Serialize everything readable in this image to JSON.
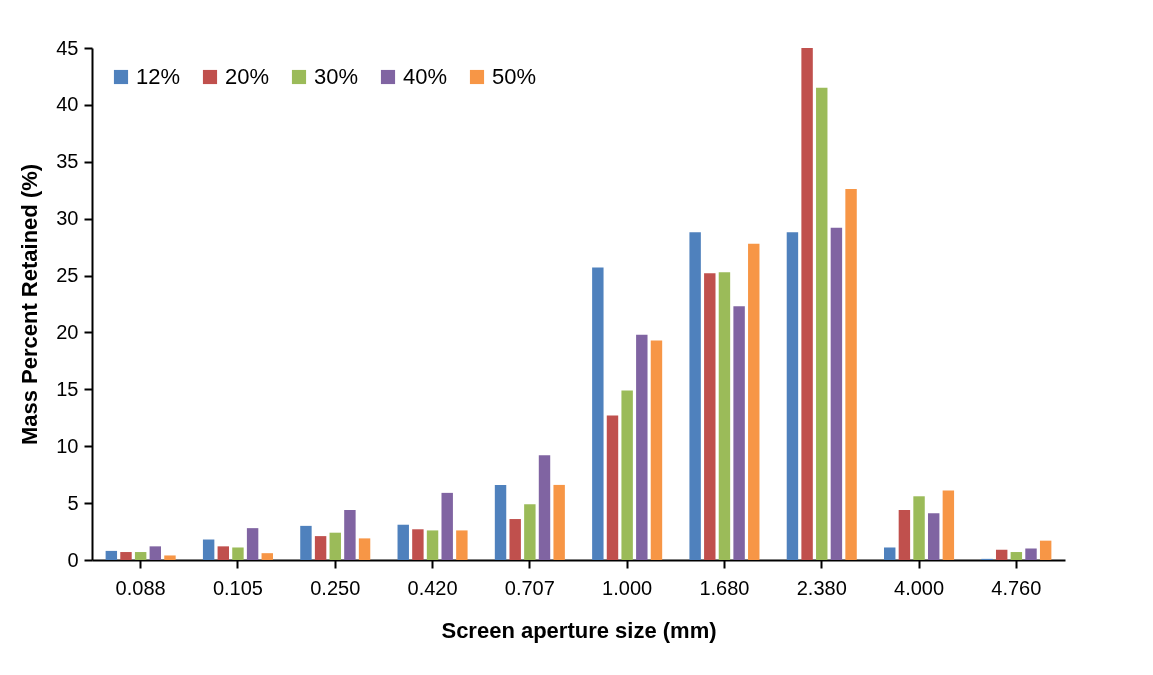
{
  "chart_data": {
    "type": "bar",
    "xlabel": "Screen aperture size (mm)",
    "ylabel": "Mass Percent Retained (%)",
    "categories": [
      "0.088",
      "0.105",
      "0.250",
      "0.420",
      "0.707",
      "1.000",
      "1.680",
      "2.380",
      "4.000",
      "4.760"
    ],
    "series": [
      {
        "name": "12%",
        "color": "#4f81bd",
        "values": [
          0.8,
          1.8,
          3.0,
          3.1,
          6.6,
          25.7,
          28.8,
          28.8,
          1.1,
          0.1
        ]
      },
      {
        "name": "20%",
        "color": "#c0504d",
        "values": [
          0.7,
          1.2,
          2.1,
          2.7,
          3.6,
          12.7,
          25.2,
          45,
          4.4,
          0.9
        ]
      },
      {
        "name": "30%",
        "color": "#9bbb59",
        "values": [
          0.7,
          1.1,
          2.4,
          2.6,
          4.9,
          14.9,
          25.3,
          41.5,
          5.6,
          0.7
        ]
      },
      {
        "name": "40%",
        "color": "#8064a2",
        "values": [
          1.2,
          2.8,
          4.4,
          5.9,
          9.2,
          19.8,
          22.3,
          29.2,
          4.1,
          1.0
        ]
      },
      {
        "name": "50%",
        "color": "#f79646",
        "values": [
          0.4,
          0.6,
          1.9,
          2.6,
          6.6,
          19.3,
          27.8,
          32.6,
          6.1,
          1.7
        ]
      }
    ],
    "ylim": [
      0,
      45
    ],
    "yticks": [
      0,
      5,
      10,
      15,
      20,
      25,
      30,
      35,
      40,
      45
    ],
    "grid": false,
    "legend": "top left"
  }
}
